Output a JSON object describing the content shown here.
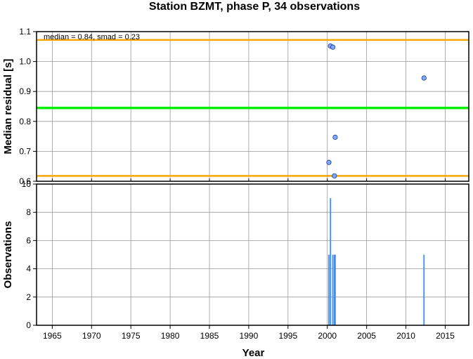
{
  "chart_data": [
    {
      "type": "scatter",
      "title": "Station BZMT, phase P, 34 observations",
      "ylabel": "Median residual [s]",
      "xlabel": "",
      "xlim": [
        1963,
        2018
      ],
      "ylim": [
        0.6,
        1.1
      ],
      "xticks": [
        1965,
        1970,
        1975,
        1980,
        1985,
        1990,
        1995,
        2000,
        2005,
        2010,
        2015
      ],
      "yticks": [
        "0.6",
        "0.7",
        "0.8",
        "0.9",
        "1.0",
        "1.1"
      ],
      "grid": true,
      "annotation": "median = 0.84, smad = 0.23",
      "reference_lines": [
        {
          "name": "median",
          "value": 0.845,
          "color": "#00ee00"
        },
        {
          "name": "upper",
          "value": 1.072,
          "color": "#ffa500"
        },
        {
          "name": "lower",
          "value": 0.618,
          "color": "#ffa500"
        }
      ],
      "points": [
        {
          "x": 2000.2,
          "y": 0.663
        },
        {
          "x": 2000.4,
          "y": 1.052
        },
        {
          "x": 2000.7,
          "y": 1.048
        },
        {
          "x": 2000.9,
          "y": 0.618
        },
        {
          "x": 2001.0,
          "y": 0.747
        },
        {
          "x": 2012.3,
          "y": 0.945
        }
      ],
      "point_color": "#7fa8ff"
    },
    {
      "type": "bar",
      "title": "",
      "ylabel": "Observations",
      "xlabel": "Year",
      "xlim": [
        1963,
        2018
      ],
      "ylim": [
        0,
        10
      ],
      "xticks": [
        1965,
        1970,
        1975,
        1980,
        1985,
        1990,
        1995,
        2000,
        2005,
        2010,
        2015
      ],
      "yticks": [
        "0",
        "2",
        "4",
        "6",
        "8",
        "10"
      ],
      "grid": true,
      "bars": [
        {
          "x": 2000.2,
          "value": 5
        },
        {
          "x": 2000.4,
          "value": 9
        },
        {
          "x": 2000.7,
          "value": 5
        },
        {
          "x": 2000.9,
          "value": 5
        },
        {
          "x": 2001.0,
          "value": 5
        },
        {
          "x": 2012.3,
          "value": 5
        }
      ],
      "bar_color": "#3b8eff"
    }
  ]
}
